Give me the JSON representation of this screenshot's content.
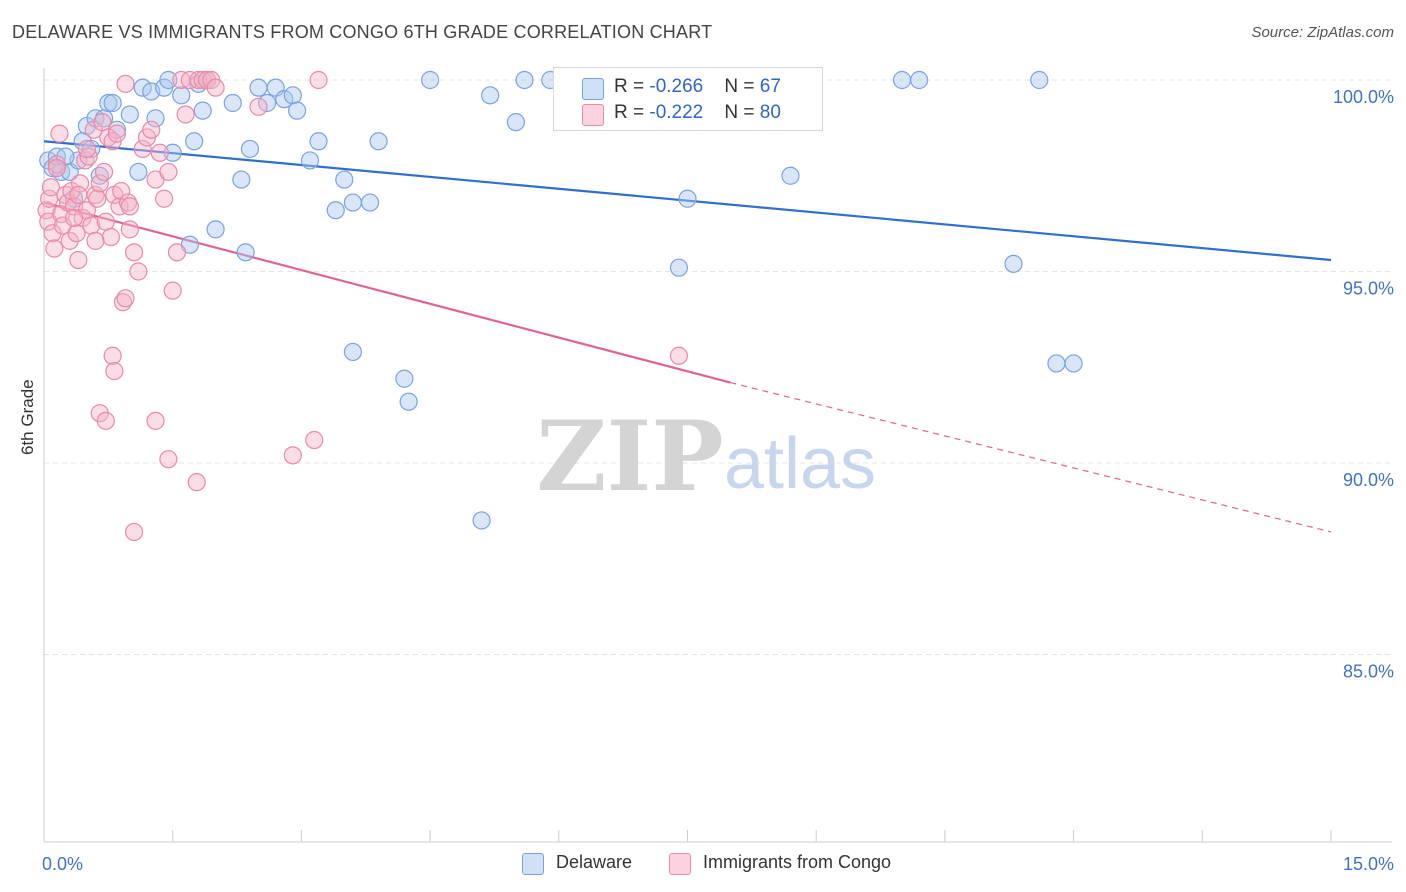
{
  "header": {
    "title": "DELAWARE VS IMMIGRANTS FROM CONGO 6TH GRADE CORRELATION CHART",
    "source": "Source: ZipAtlas.com"
  },
  "watermark": {
    "zip": "ZIP",
    "atlas": "atlas"
  },
  "legend": {
    "series": [
      {
        "r_label": "R = ",
        "r_value": "-0.266",
        "n_label": "N = ",
        "n_value": "67",
        "color": "#a9c7f0"
      },
      {
        "r_label": "R = ",
        "r_value": "-0.222",
        "n_label": "N = ",
        "n_value": "80",
        "color": "#f5b3c8"
      }
    ]
  },
  "bottom_legend": [
    "Delaware",
    "Immigrants from Congo"
  ],
  "chart_data": {
    "type": "scatter",
    "title": "DELAWARE VS IMMIGRANTS FROM CONGO 6TH GRADE CORRELATION CHART",
    "xlabel": "",
    "ylabel": "6th Grade",
    "xlim": [
      0,
      15
    ],
    "ylim": [
      80.5,
      100.8
    ],
    "x_tick_labels": [
      "0.0%",
      "15.0%"
    ],
    "y_ticks": [
      85,
      90,
      95,
      100
    ],
    "y_tick_labels": [
      "85.0%",
      "90.0%",
      "95.0%",
      "100.0%"
    ],
    "grid": true,
    "legend_position": "top-center",
    "series": [
      {
        "name": "Delaware",
        "color": "#a9c7f0",
        "stroke": "#7aa3e0",
        "trend_color": "#2e6fd0",
        "trend": {
          "x": [
            0,
            15
          ],
          "y": [
            98.4,
            95.3
          ]
        },
        "points": [
          [
            0.05,
            97.9
          ],
          [
            0.1,
            97.7
          ],
          [
            0.15,
            98.0
          ],
          [
            0.2,
            97.6
          ],
          [
            0.3,
            97.6
          ],
          [
            0.4,
            97.9
          ],
          [
            0.45,
            98.4
          ],
          [
            0.5,
            98.8
          ],
          [
            0.55,
            98.2
          ],
          [
            0.6,
            99.0
          ],
          [
            0.7,
            99.0
          ],
          [
            0.75,
            99.4
          ],
          [
            0.8,
            99.4
          ],
          [
            0.85,
            98.7
          ],
          [
            1.0,
            99.1
          ],
          [
            1.1,
            97.6
          ],
          [
            1.15,
            99.8
          ],
          [
            1.25,
            99.7
          ],
          [
            1.3,
            99.0
          ],
          [
            1.4,
            99.8
          ],
          [
            1.45,
            100.0
          ],
          [
            1.5,
            98.1
          ],
          [
            1.6,
            99.6
          ],
          [
            1.7,
            95.7
          ],
          [
            1.75,
            98.4
          ],
          [
            1.8,
            99.9
          ],
          [
            1.85,
            99.2
          ],
          [
            1.9,
            100.0
          ],
          [
            2.0,
            96.1
          ],
          [
            2.2,
            99.4
          ],
          [
            2.3,
            97.4
          ],
          [
            2.35,
            95.5
          ],
          [
            2.4,
            98.2
          ],
          [
            2.5,
            99.8
          ],
          [
            2.6,
            99.4
          ],
          [
            2.7,
            99.8
          ],
          [
            2.8,
            99.5
          ],
          [
            2.9,
            99.6
          ],
          [
            2.95,
            99.2
          ],
          [
            3.1,
            97.9
          ],
          [
            3.2,
            98.4
          ],
          [
            3.4,
            96.6
          ],
          [
            3.5,
            97.4
          ],
          [
            3.6,
            92.9
          ],
          [
            3.6,
            96.8
          ],
          [
            3.8,
            96.8
          ],
          [
            3.9,
            98.4
          ],
          [
            4.2,
            92.2
          ],
          [
            4.25,
            91.6
          ],
          [
            4.5,
            100.0
          ],
          [
            5.1,
            88.5
          ],
          [
            5.2,
            99.6
          ],
          [
            5.5,
            98.9
          ],
          [
            5.6,
            100.0
          ],
          [
            5.9,
            100.0
          ],
          [
            7.4,
            95.1
          ],
          [
            7.5,
            96.9
          ],
          [
            8.7,
            97.5
          ],
          [
            10.0,
            100.0
          ],
          [
            10.2,
            100.0
          ],
          [
            11.3,
            95.2
          ],
          [
            11.6,
            100.0
          ],
          [
            11.8,
            92.6
          ],
          [
            12.0,
            92.6
          ],
          [
            0.25,
            98.0
          ],
          [
            0.65,
            97.5
          ],
          [
            0.35,
            96.9
          ]
        ]
      },
      {
        "name": "Immigrants from Congo",
        "color": "#f5b3c8",
        "stroke": "#e88aaa",
        "trend_color": "#e06493",
        "trend": {
          "x": [
            0,
            8.0
          ],
          "y": [
            96.8,
            92.1
          ]
        },
        "trend_dashed": {
          "x": [
            8.0,
            15
          ],
          "y": [
            92.1,
            88.2
          ]
        },
        "points": [
          [
            0.03,
            96.6
          ],
          [
            0.05,
            96.3
          ],
          [
            0.06,
            96.9
          ],
          [
            0.08,
            97.2
          ],
          [
            0.1,
            96.0
          ],
          [
            0.12,
            95.6
          ],
          [
            0.15,
            97.8
          ],
          [
            0.18,
            98.6
          ],
          [
            0.2,
            96.5
          ],
          [
            0.22,
            96.2
          ],
          [
            0.25,
            97.0
          ],
          [
            0.28,
            96.8
          ],
          [
            0.3,
            95.8
          ],
          [
            0.32,
            97.1
          ],
          [
            0.35,
            96.7
          ],
          [
            0.38,
            96.0
          ],
          [
            0.4,
            95.3
          ],
          [
            0.42,
            97.3
          ],
          [
            0.45,
            96.4
          ],
          [
            0.48,
            97.9
          ],
          [
            0.5,
            96.6
          ],
          [
            0.52,
            98.0
          ],
          [
            0.55,
            96.2
          ],
          [
            0.58,
            98.7
          ],
          [
            0.6,
            97.0
          ],
          [
            0.62,
            96.9
          ],
          [
            0.65,
            97.3
          ],
          [
            0.68,
            98.9
          ],
          [
            0.7,
            97.6
          ],
          [
            0.72,
            96.3
          ],
          [
            0.75,
            98.5
          ],
          [
            0.78,
            95.9
          ],
          [
            0.8,
            98.4
          ],
          [
            0.82,
            97.0
          ],
          [
            0.85,
            98.6
          ],
          [
            0.88,
            96.7
          ],
          [
            0.9,
            97.1
          ],
          [
            0.92,
            94.2
          ],
          [
            0.95,
            94.3
          ],
          [
            0.98,
            96.8
          ],
          [
            1.0,
            96.7
          ],
          [
            1.05,
            95.5
          ],
          [
            1.1,
            95.0
          ],
          [
            1.15,
            98.2
          ],
          [
            1.2,
            98.5
          ],
          [
            1.25,
            98.7
          ],
          [
            1.3,
            97.4
          ],
          [
            1.35,
            98.1
          ],
          [
            1.4,
            96.9
          ],
          [
            1.45,
            97.6
          ],
          [
            1.5,
            94.5
          ],
          [
            1.55,
            95.5
          ],
          [
            1.6,
            100.0
          ],
          [
            1.65,
            99.1
          ],
          [
            1.7,
            100.0
          ],
          [
            1.8,
            100.0
          ],
          [
            1.85,
            100.0
          ],
          [
            1.9,
            100.0
          ],
          [
            1.95,
            100.0
          ],
          [
            2.0,
            99.8
          ],
          [
            2.5,
            99.3
          ],
          [
            3.2,
            100.0
          ],
          [
            3.15,
            90.6
          ],
          [
            2.9,
            90.2
          ],
          [
            0.65,
            91.3
          ],
          [
            0.8,
            92.8
          ],
          [
            0.82,
            92.4
          ],
          [
            0.72,
            91.1
          ],
          [
            1.3,
            91.1
          ],
          [
            1.45,
            90.1
          ],
          [
            1.78,
            89.5
          ],
          [
            1.05,
            88.2
          ],
          [
            0.95,
            99.9
          ],
          [
            0.5,
            98.2
          ],
          [
            0.35,
            96.4
          ],
          [
            0.6,
            95.8
          ],
          [
            1.0,
            96.1
          ],
          [
            7.4,
            92.8
          ],
          [
            0.15,
            97.7
          ],
          [
            0.4,
            97.0
          ]
        ]
      }
    ]
  }
}
